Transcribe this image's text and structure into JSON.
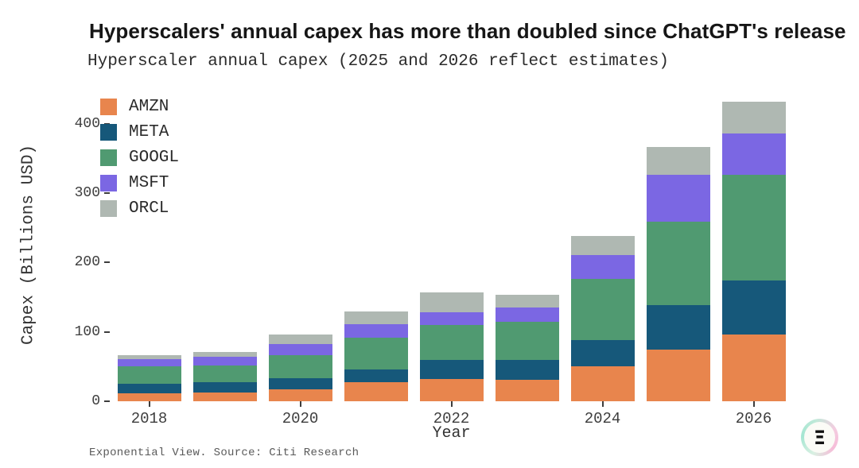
{
  "title": "Hyperscalers' annual capex has more than doubled since ChatGPT's release",
  "subtitle": "Hyperscaler annual capex (2025 and 2026 reflect estimates)",
  "footer": "Exponential View. Source: Citi Research",
  "logo": {
    "glyph": "Ξ"
  },
  "chart_data": {
    "type": "bar",
    "stacked": true,
    "title": "Hyperscalers' annual capex has more than doubled since ChatGPT's release",
    "subtitle": "Hyperscaler annual capex (2025 and 2026 reflect estimates)",
    "xlabel": "Year",
    "ylabel": "Capex (Billions USD)",
    "x": [
      2018,
      2019,
      2020,
      2021,
      2022,
      2023,
      2024,
      2025,
      2026
    ],
    "x_tick_labels": [
      "2018",
      "2020",
      "2022",
      "2024",
      "2026"
    ],
    "x_tick_step": 2,
    "ylim": [
      0,
      450
    ],
    "yticks": [
      0,
      100,
      200,
      300,
      400
    ],
    "grid": false,
    "legend_position": "top-left",
    "series": [
      {
        "name": "AMZN",
        "color": "#E8854D",
        "values": [
          11,
          13,
          17,
          28,
          32,
          31,
          50,
          74,
          96
        ]
      },
      {
        "name": "META",
        "color": "#16587A",
        "values": [
          14,
          15,
          16,
          18,
          28,
          29,
          38,
          65,
          78
        ]
      },
      {
        "name": "GOOGL",
        "color": "#509A71",
        "values": [
          25,
          24,
          33,
          46,
          50,
          54,
          88,
          120,
          152
        ]
      },
      {
        "name": "MSFT",
        "color": "#7B67E3",
        "values": [
          11,
          12,
          16,
          19,
          18,
          21,
          35,
          67,
          60
        ]
      },
      {
        "name": "ORCL",
        "color": "#AFB8B2",
        "values": [
          6,
          7,
          14,
          19,
          29,
          18,
          27,
          41,
          46
        ]
      }
    ],
    "totals": [
      67,
      71,
      96,
      130,
      157,
      153,
      238,
      367,
      432
    ]
  }
}
